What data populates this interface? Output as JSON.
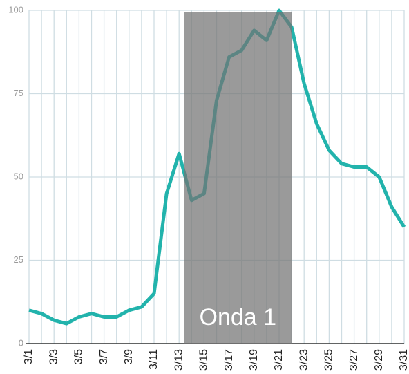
{
  "chart_data": {
    "type": "line",
    "categories": [
      "3/1",
      null,
      "3/3",
      null,
      "3/5",
      null,
      "3/7",
      null,
      "3/9",
      null,
      "3/11",
      null,
      "3/13",
      null,
      "3/15",
      null,
      "3/17",
      null,
      "3/19",
      null,
      "3/21",
      null,
      "3/23",
      null,
      "3/25",
      null,
      "3/27",
      null,
      "3/29",
      null,
      "3/31"
    ],
    "series": [
      {
        "color": "#22b3ac",
        "values": [
          10,
          9,
          7,
          6,
          8,
          9,
          8,
          8,
          10,
          11,
          15,
          45,
          57,
          43,
          45,
          73,
          86,
          88,
          94,
          91,
          100,
          95,
          78,
          66,
          58,
          54,
          53,
          53,
          50,
          41,
          35
        ]
      }
    ],
    "ylim": [
      0,
      100
    ],
    "yticks": [
      0,
      25,
      50,
      75,
      100
    ],
    "grid": true,
    "shaded_region": {
      "label": "Onda 1",
      "x_from": 13.4,
      "x_to": 22,
      "y_to": 99.4,
      "color": "#737373"
    }
  }
}
